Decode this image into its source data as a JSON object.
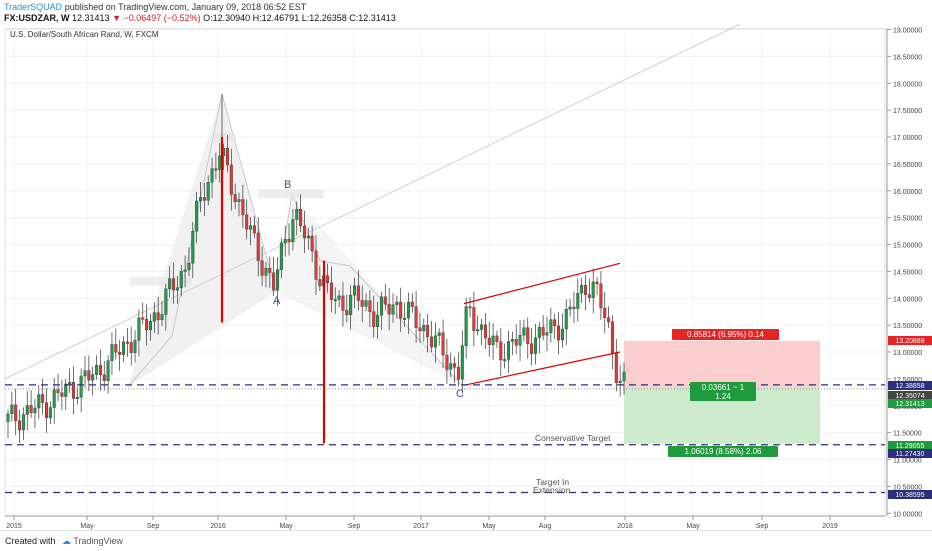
{
  "header": {
    "publisher": "TraderSQUAD",
    "published_text": "published on TradingView.com, January 09, 2018 06:52 EST",
    "symbol": "FX:USDZAR, W",
    "last": "12.31413",
    "change_arrow": "▼",
    "change": "−0.06497 (−0.52%)",
    "open": "O:12.30940",
    "high": "H:12.46791",
    "low": "L:12.26358",
    "close": "C:12.31413"
  },
  "chart_title": "U.S. Dollar/South African Rand, W, FXCM",
  "footer": {
    "created_with": "Created with",
    "logo_text": "TradingView"
  },
  "colors": {
    "up": "#1d9e4a",
    "down": "#e53935",
    "level_line": "#2b2e7a",
    "risk_zone": "#f9c5c5",
    "reward_zone": "#c8e9c6",
    "pattern_fill": "#eeeeee"
  },
  "chart_data": {
    "type": "candlestick",
    "instrument": "USD/ZAR",
    "timeframe": "W",
    "x_labels": [
      "2015",
      "May",
      "Sep",
      "2016",
      "May",
      "Sep",
      "2017",
      "May",
      "Aug",
      "2018",
      "May",
      "Sep",
      "2019"
    ],
    "y_ticks": [
      "19.00000",
      "18.50000",
      "18.00000",
      "17.50000",
      "17.00000",
      "16.50000",
      "16.00000",
      "15.50000",
      "15.00000",
      "14.50000",
      "14.00000",
      "13.50000",
      "13.00000",
      "12.50000",
      "12.00000",
      "11.50000",
      "11.00000",
      "10.50000",
      "10.00000"
    ],
    "ylim": [
      9.8,
      19.1
    ],
    "price_tags": [
      {
        "label": "13.20888",
        "value": 13.20888,
        "kind": "stop"
      },
      {
        "label": "12.38858",
        "value": 12.38858,
        "kind": "level"
      },
      {
        "label": "12.35074",
        "value": 12.35074,
        "kind": "entry"
      },
      {
        "label": "12.31413",
        "value": 12.31413,
        "kind": "last"
      },
      {
        "label": "11.29055",
        "value": 11.29055,
        "kind": "target"
      },
      {
        "label": "11.27430",
        "value": 11.2743,
        "kind": "level"
      },
      {
        "label": "10.38595",
        "value": 10.38595,
        "kind": "level"
      }
    ],
    "levels": [
      12.38858,
      11.2743,
      10.38595
    ],
    "key_prices": [
      {
        "label": "2016 high",
        "value": 17.8
      },
      {
        "label": "Jan 2016 bar low",
        "value": 13.55
      },
      {
        "label": "Jun 2016 bar low",
        "value": 11.3
      },
      {
        "label": "A",
        "value": 14.12
      },
      {
        "label": "B",
        "value": 15.93
      },
      {
        "label": "C",
        "value": 12.38
      }
    ],
    "channel": [
      {
        "from": {
          "date": "2017-03",
          "price": 13.9
        },
        "to": {
          "date": "2017-11",
          "price": 14.65
        }
      },
      {
        "from": {
          "date": "2017-03",
          "price": 12.38
        },
        "to": {
          "date": "2017-11",
          "price": 13.0
        }
      }
    ],
    "position": {
      "entry": 12.35074,
      "stop": 13.20888,
      "target": 11.29055,
      "risk_label": "0.85814 (6.95%) 0.14",
      "ratio_label_1": "0.03661 ~ 1",
      "ratio_label_2": "1.24",
      "reward_label": "1.06019 (8.58%) 2.06"
    },
    "annotations": {
      "point_a": "A",
      "point_b": "B",
      "point_c": "C",
      "conservative": "Conservative Target",
      "extension_1": "Target In",
      "extension_2": "Extension"
    }
  }
}
